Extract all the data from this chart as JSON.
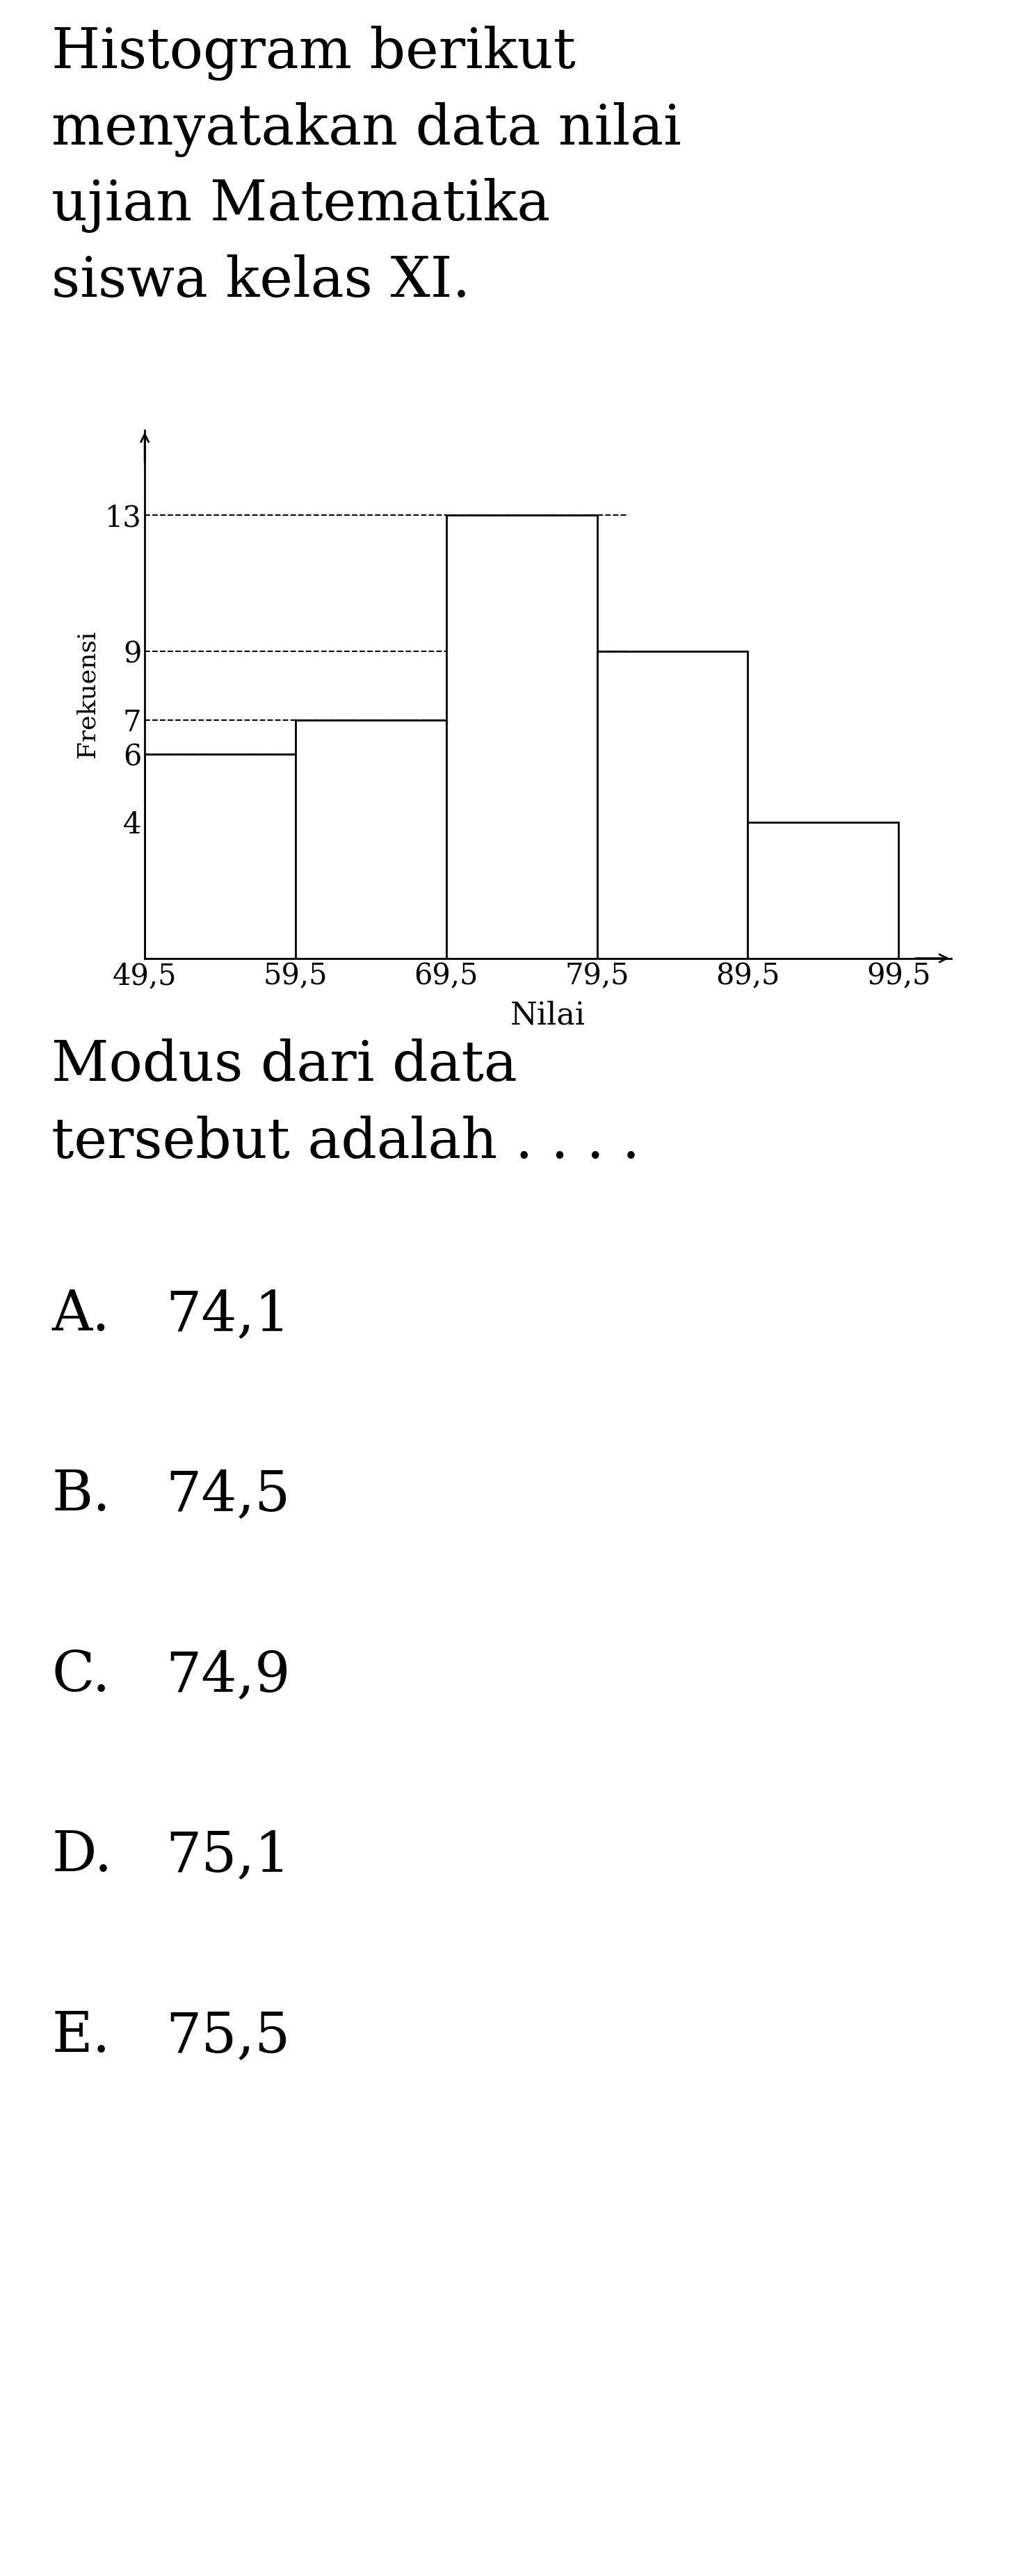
{
  "question_text_lines": [
    "Histogram berikut",
    "menyatakan data nilai",
    "ujian Matematika",
    "siswa kelas XI."
  ],
  "bar_edges": [
    49.5,
    59.5,
    69.5,
    79.5,
    89.5,
    99.5
  ],
  "bar_heights": [
    6,
    7,
    13,
    9,
    4
  ],
  "xlabel": "Nilai",
  "ylabel": "Frekuensi",
  "yticks": [
    4,
    6,
    7,
    9,
    13
  ],
  "xtick_labels": [
    "49,5",
    "59,5",
    "69,5",
    "79,5",
    "89,5",
    "99,5"
  ],
  "dashed_y_values": [
    4,
    6,
    7,
    9,
    13
  ],
  "answer_line1": "Modus dari data",
  "answer_line2": "tersebut adalah . . . .",
  "choices": [
    [
      "A.",
      "74,1"
    ],
    [
      "B.",
      "74,5"
    ],
    [
      "C.",
      "74,9"
    ],
    [
      "D.",
      "75,1"
    ],
    [
      "E.",
      "75,5"
    ]
  ],
  "background_color": "#ffffff",
  "bar_facecolor": "#ffffff",
  "bar_edgecolor": "#000000",
  "text_color": "#000000",
  "dashed_line_color": "#000000",
  "axis_color": "#000000",
  "question_fontsize": 58,
  "axis_label_fontsize": 32,
  "tick_fontsize": 30,
  "answer_fontsize": 58,
  "choice_fontsize": 58,
  "ylabel_fontsize": 26
}
